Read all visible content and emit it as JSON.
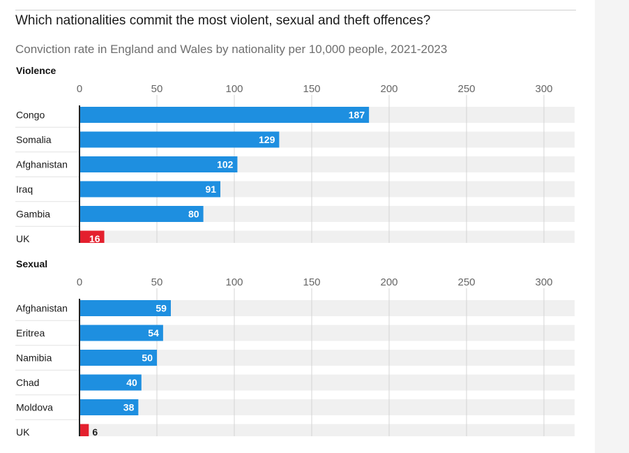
{
  "title": "Which nationalities commit the most violent, sexual and theft offences?",
  "subtitle": "Conviction rate in England and Wales by nationality per 10,000 people, 2021-2023",
  "colors": {
    "bar": "#1e8fe0",
    "highlight": "#e4202e",
    "track": "#f0f0f0",
    "grid": "#d4d4d4",
    "axis": "#222222"
  },
  "chart_data": [
    {
      "type": "bar",
      "orientation": "horizontal",
      "title": "Violence",
      "xlim": [
        0,
        320
      ],
      "ticks": [
        0,
        50,
        100,
        150,
        200,
        250,
        300
      ],
      "categories": [
        "Congo",
        "Somalia",
        "Afghanistan",
        "Iraq",
        "Gambia",
        "UK"
      ],
      "values": [
        187,
        129,
        102,
        91,
        80,
        16
      ],
      "highlight": [
        "UK"
      ]
    },
    {
      "type": "bar",
      "orientation": "horizontal",
      "title": "Sexual",
      "xlim": [
        0,
        320
      ],
      "ticks": [
        0,
        50,
        100,
        150,
        200,
        250,
        300
      ],
      "categories": [
        "Afghanistan",
        "Eritrea",
        "Namibia",
        "Chad",
        "Moldova",
        "UK"
      ],
      "values": [
        59,
        54,
        50,
        40,
        38,
        6
      ],
      "highlight": [
        "UK"
      ]
    }
  ]
}
